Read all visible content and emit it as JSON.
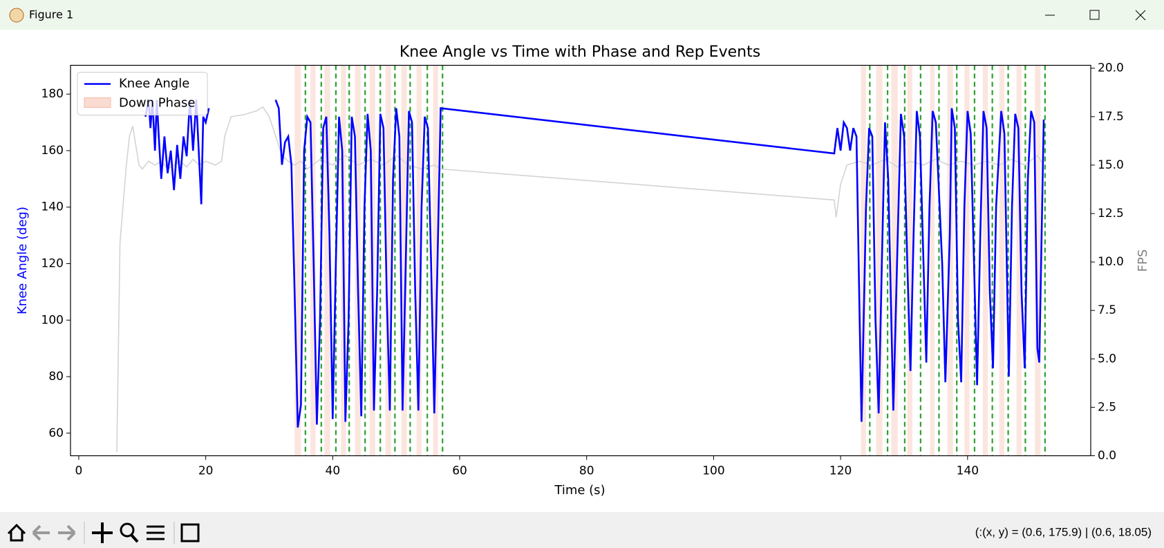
{
  "window": {
    "title": "Figure 1"
  },
  "status": "(:(x, y) = (0.6, 175.9) | (0.6, 18.05)",
  "chart_data": {
    "type": "line",
    "title": "Knee Angle vs Time with Phase and Rep Events",
    "xlabel": "Time (s)",
    "ylabel": "Knee Angle (deg)",
    "y2label": "FPS",
    "xlim": [
      -1.3,
      159.4
    ],
    "xticks": [
      0,
      20,
      40,
      60,
      80,
      100,
      120,
      140
    ],
    "ylim": [
      52,
      190.2
    ],
    "yticks": [
      60,
      80,
      100,
      120,
      140,
      160,
      180
    ],
    "y2lim": [
      0,
      20.15
    ],
    "y2ticks": [
      {
        "value": 0,
        "label": "0.0"
      },
      2.5,
      {
        "value": 5,
        "label": "5.0"
      },
      7.5,
      {
        "value": 10,
        "label": "10.0"
      },
      12.5,
      {
        "value": 15,
        "label": "15.0"
      },
      17.5,
      {
        "value": 20,
        "label": "20.0"
      }
    ],
    "legend": "upper left",
    "series": [
      {
        "name": "Knee Angle",
        "color": "#0000ff",
        "x": [
          10.5,
          11,
          11.3,
          11.6,
          12,
          12.3,
          12.6,
          13,
          13.5,
          14,
          14.5,
          15,
          15.5,
          16,
          16.5,
          17,
          17.5,
          18,
          18.5,
          19,
          19.3,
          19.6,
          20,
          20.5,
          25,
          31,
          31.5,
          32,
          32.5,
          33,
          33.5,
          34,
          34.5,
          35,
          35.5,
          36,
          36.5,
          37,
          37.5,
          38,
          38.5,
          39,
          39.5,
          40,
          40.5,
          41,
          41.5,
          42,
          42.5,
          43,
          43.5,
          44,
          44.5,
          45,
          45.5,
          46,
          46.5,
          47,
          47.5,
          48,
          48.5,
          49,
          49.5,
          50,
          50.5,
          51,
          51.5,
          52,
          52.5,
          53,
          53.5,
          54,
          54.5,
          55,
          55.5,
          56,
          56.5,
          57,
          119,
          119.5,
          120,
          120.5,
          121,
          121.5,
          122,
          122.5,
          123,
          123.3,
          124,
          124.5,
          125,
          125.5,
          126,
          126.5,
          127,
          127.5,
          128.3,
          129,
          129.5,
          130,
          130.5,
          131,
          131.5,
          132,
          132.5,
          133.5,
          134,
          134.5,
          135,
          136,
          136.5,
          137.2,
          137.5,
          138,
          138.5,
          139,
          139.5,
          140,
          140.5,
          141.5,
          142,
          142.5,
          143,
          143.5,
          144,
          144.5,
          145.3,
          145.8,
          146.5,
          147,
          147.5,
          148,
          148.5,
          149,
          149.5,
          150,
          150.5,
          151,
          151.3,
          152
        ],
        "values": [
          172,
          178,
          168,
          178,
          160,
          178,
          165,
          150,
          165,
          152,
          160,
          146,
          162,
          150,
          165,
          158,
          178,
          160,
          178,
          155,
          141,
          172,
          170,
          175,
          null,
          178,
          175,
          155,
          163,
          165,
          155,
          110,
          62,
          70,
          160,
          172,
          170,
          120,
          63,
          100,
          168,
          172,
          130,
          65,
          120,
          172,
          160,
          64,
          100,
          172,
          165,
          110,
          66,
          140,
          173,
          160,
          68,
          110,
          173,
          168,
          110,
          68,
          150,
          175,
          165,
          68,
          120,
          174,
          170,
          110,
          68,
          140,
          172,
          168,
          120,
          67,
          120,
          175,
          159,
          168,
          160,
          170,
          168,
          160,
          168,
          165,
          100,
          64,
          140,
          168,
          165,
          100,
          67,
          120,
          170,
          150,
          68,
          130,
          173,
          165,
          120,
          82,
          130,
          174,
          165,
          85,
          140,
          174,
          170,
          120,
          78,
          130,
          175,
          168,
          100,
          78,
          140,
          174,
          166,
          77,
          130,
          174,
          168,
          110,
          83,
          140,
          174,
          166,
          80,
          140,
          173,
          168,
          110,
          83,
          150,
          174,
          170,
          90,
          85,
          171
        ]
      },
      {
        "color": "#d3d3d3",
        "axis": "y2",
        "x": [
          6,
          6.5,
          7.5,
          8,
          8.5,
          9,
          9.5,
          10,
          11,
          12,
          13,
          14,
          15,
          16,
          17,
          18,
          19,
          20,
          21.5,
          22.5,
          23,
          24,
          26,
          28,
          29,
          30,
          31,
          32,
          33,
          34,
          35,
          36,
          38,
          40,
          42,
          44,
          46,
          48,
          50,
          52,
          54,
          56,
          57,
          119,
          119.3,
          120,
          121,
          123,
          125,
          127,
          129,
          131,
          133,
          135,
          137,
          139,
          141,
          143,
          145,
          147,
          149,
          151,
          152
        ],
        "values": [
          0.2,
          11,
          15,
          16.5,
          17,
          16,
          15,
          14.8,
          15.2,
          15,
          15.2,
          14.8,
          15,
          15.2,
          14.9,
          15.3,
          15,
          15.2,
          15,
          15.2,
          16.5,
          17.5,
          17.6,
          17.8,
          18,
          17.5,
          16.5,
          15.5,
          15.2,
          15,
          15.2,
          14.8,
          15.3,
          15,
          15.5,
          15,
          15.3,
          15,
          15.5,
          15,
          14.8,
          15,
          14.8,
          13.2,
          12.3,
          14,
          15,
          15.2,
          15,
          15.3,
          14.9,
          15.2,
          15,
          15.3,
          15,
          15.2,
          15,
          15.2,
          15,
          15.3,
          15,
          15.5,
          15
        ]
      }
    ],
    "spans": {
      "name": "Down Phase",
      "color": "#fadbd2",
      "ranges": [
        [
          34,
          35
        ],
        [
          36.5,
          37.3
        ],
        [
          38.7,
          39.6
        ],
        [
          41.3,
          42.1
        ],
        [
          43.5,
          44.4
        ],
        [
          45.8,
          46.7
        ],
        [
          48.3,
          49.2
        ],
        [
          50.8,
          51.7
        ],
        [
          53.2,
          54
        ],
        [
          55.8,
          56.6
        ],
        [
          123.2,
          124
        ],
        [
          125.6,
          126.6
        ],
        [
          128,
          129
        ],
        [
          130.5,
          131.3
        ],
        [
          134.1,
          134.8
        ],
        [
          136.8,
          137.7
        ],
        [
          139.5,
          140.3
        ],
        [
          142.4,
          143.2
        ],
        [
          145,
          145.8
        ],
        [
          147.7,
          148.5
        ],
        [
          150.6,
          151.5
        ]
      ]
    },
    "events": {
      "color": "#2ca02c",
      "x": [
        35.7,
        38.2,
        40.5,
        42.6,
        45.1,
        47.5,
        49.8,
        52.2,
        54.9,
        57.3,
        124.6,
        127.4,
        130.1,
        132.6,
        135.5,
        138.3,
        141.1,
        143.9,
        146.4,
        149.1,
        152.2
      ]
    }
  }
}
